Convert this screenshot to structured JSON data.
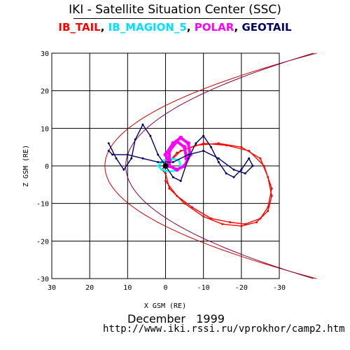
{
  "page": {
    "title": "IKI - Satellite Situation Center (SSC)",
    "date": "December   1999",
    "url": "http://www.iki.rssi.ru/vprokhor/camp2.htm"
  },
  "chart_data": {
    "type": "scatter",
    "xlabel": "X GSM (RE)",
    "ylabel": "Z GSM (RE)",
    "xlim": [
      30,
      -30
    ],
    "ylim": [
      -30,
      30
    ],
    "x_reversed": true,
    "grid": true,
    "x_ticks": [
      30,
      20,
      10,
      0,
      -10,
      -20,
      -30
    ],
    "y_ticks": [
      30,
      20,
      10,
      0,
      -10,
      -20,
      -30
    ],
    "x_tick_labels": [
      "30",
      "20",
      "10",
      "0",
      "-10",
      "-20",
      "-30"
    ],
    "y_tick_labels": [
      "30",
      "20",
      "10",
      "0",
      "-10",
      "-20",
      "-30"
    ],
    "legend_placement": "top",
    "series": [
      {
        "name": "IB_TAIL",
        "color": "#ff0000",
        "points": [
          [
            1,
            -1
          ],
          [
            -3,
            3.5
          ],
          [
            -8,
            5.5
          ],
          [
            -14,
            6
          ],
          [
            -20,
            5
          ],
          [
            -25,
            2
          ],
          [
            -27,
            -3
          ],
          [
            -28,
            -8
          ],
          [
            -27,
            -12
          ],
          [
            -24,
            -15
          ],
          [
            -20,
            -16
          ],
          [
            -15,
            -15.5
          ],
          [
            -10,
            -13.5
          ],
          [
            -5,
            -10
          ],
          [
            -1,
            -6
          ],
          [
            0,
            -2
          ],
          [
            1,
            -1
          ],
          [
            -4,
            4
          ],
          [
            -10,
            6
          ],
          [
            -16,
            5.5
          ],
          [
            -22,
            4
          ],
          [
            -26,
            0
          ],
          [
            -28,
            -6
          ],
          [
            -27,
            -11
          ],
          [
            -25,
            -14
          ],
          [
            -21,
            -15.5
          ],
          [
            -17,
            -15
          ],
          [
            -12,
            -14
          ],
          [
            -7,
            -11
          ],
          [
            -3,
            -8
          ],
          [
            0,
            -4
          ]
        ]
      },
      {
        "name": "IB_MAGION_5",
        "color": "#00ffff",
        "points": [
          [
            2,
            0
          ],
          [
            0.5,
            1.5
          ],
          [
            -1.5,
            2
          ],
          [
            -3.5,
            1.5
          ],
          [
            -4,
            0
          ],
          [
            -3,
            -1.2
          ],
          [
            -1,
            -1.5
          ],
          [
            1,
            -1
          ],
          [
            2,
            0
          ]
        ]
      },
      {
        "name": "POLAR",
        "color": "#ff00ff",
        "points": [
          [
            -1,
            0
          ],
          [
            0,
            3
          ],
          [
            -2,
            6
          ],
          [
            -4,
            7.5
          ],
          [
            -6,
            6
          ],
          [
            -6.5,
            3
          ],
          [
            -5,
            0
          ],
          [
            -3,
            -1
          ],
          [
            -1,
            0
          ],
          [
            -1,
            4
          ],
          [
            -3,
            6.5
          ],
          [
            -5,
            5
          ],
          [
            -5.5,
            2
          ]
        ]
      },
      {
        "name": "GEOTAIL",
        "color": "#000066",
        "points": [
          [
            15,
            6
          ],
          [
            13,
            2
          ],
          [
            11,
            -1
          ],
          [
            9,
            2
          ],
          [
            8,
            7
          ],
          [
            6,
            11
          ],
          [
            4,
            8
          ],
          [
            2,
            3
          ],
          [
            0,
            0
          ],
          [
            -2,
            -3
          ],
          [
            -4,
            -4
          ],
          [
            -6,
            2
          ],
          [
            -8,
            6
          ],
          [
            -10,
            8
          ],
          [
            -12,
            5
          ],
          [
            -14,
            1
          ],
          [
            -16,
            -2
          ],
          [
            -18,
            -3
          ],
          [
            -20,
            -1
          ],
          [
            -22,
            2
          ],
          [
            -23,
            0
          ],
          [
            -21,
            -2
          ],
          [
            -18,
            -1
          ],
          [
            -14,
            2
          ],
          [
            -10,
            4
          ],
          [
            -6,
            3
          ],
          [
            -2,
            1
          ],
          [
            2,
            1
          ],
          [
            6,
            2
          ],
          [
            10,
            3
          ],
          [
            14,
            3
          ],
          [
            15,
            4
          ]
        ]
      }
    ],
    "reference_curves": [
      {
        "name": "bow-shock",
        "color": "#cc0000"
      },
      {
        "name": "magnetopause",
        "color": "#800040"
      }
    ],
    "center_marker": {
      "name": "earth",
      "x": 0,
      "y": 0,
      "color": "#000000"
    }
  }
}
